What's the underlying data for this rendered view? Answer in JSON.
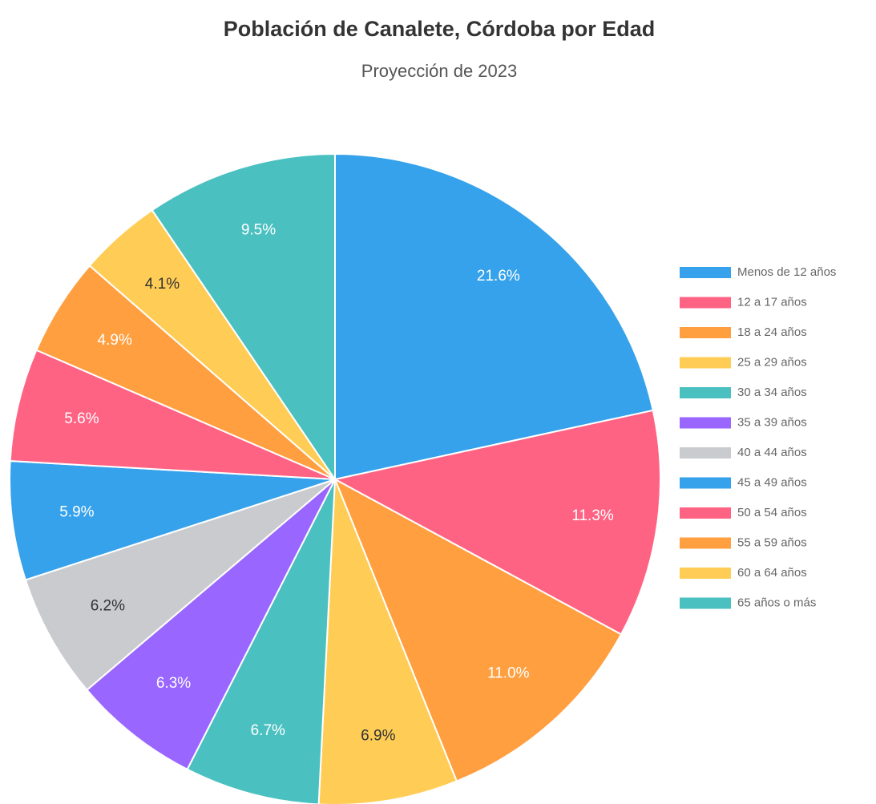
{
  "chart_data": {
    "type": "pie",
    "title": "Población de Canalete, Córdoba por Edad",
    "subtitle": "Proyección de 2023",
    "categories": [
      "Menos de 12 años",
      "12 a 17 años",
      "18 a 24 años",
      "25 a 29 años",
      "30 a 34 años",
      "35 a 39 años",
      "40 a 44 años",
      "45 a 49 años",
      "50 a 54 años",
      "55 a 59 años",
      "60 a 64 años",
      "65 años o más"
    ],
    "values": [
      21.6,
      11.3,
      11.0,
      6.9,
      6.7,
      6.3,
      6.2,
      5.9,
      5.6,
      4.9,
      4.1,
      9.5
    ],
    "value_labels": [
      "21.6%",
      "11.3%",
      "11.0%",
      "6.9%",
      "6.7%",
      "6.3%",
      "6.2%",
      "5.9%",
      "5.6%",
      "4.9%",
      "4.1%",
      "9.5%"
    ],
    "colors": [
      "#36a2eb",
      "#ff6384",
      "#ff9f40",
      "#ffcd56",
      "#4bc0c0",
      "#9966ff",
      "#c9cbcf",
      "#36a2eb",
      "#ff6384",
      "#ff9f40",
      "#ffcd56",
      "#4bc0c0"
    ],
    "legend": "right"
  }
}
